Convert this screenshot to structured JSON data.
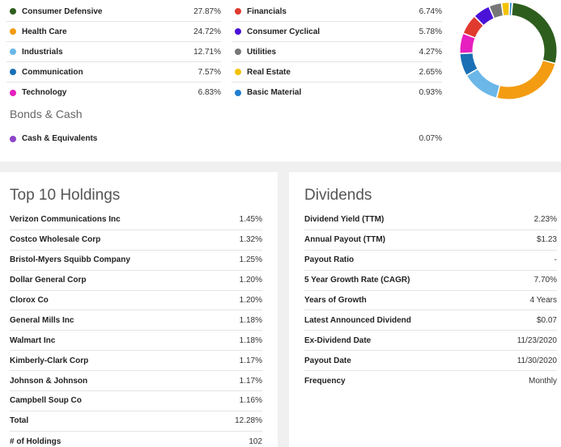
{
  "allocation": {
    "left": [
      {
        "label": "Consumer Defensive",
        "value": "27.87%",
        "color": "#2e5e1e"
      },
      {
        "label": "Health Care",
        "value": "24.72%",
        "color": "#f39c12"
      },
      {
        "label": "Industrials",
        "value": "12.71%",
        "color": "#6ab7e8"
      },
      {
        "label": "Communication",
        "value": "7.57%",
        "color": "#1a6fb5"
      },
      {
        "label": "Technology",
        "value": "6.83%",
        "color": "#e61fbf"
      }
    ],
    "right": [
      {
        "label": "Financials",
        "value": "6.74%",
        "color": "#e03a2e"
      },
      {
        "label": "Consumer Cyclical",
        "value": "5.78%",
        "color": "#4a12d9"
      },
      {
        "label": "Utilities",
        "value": "4.27%",
        "color": "#777777"
      },
      {
        "label": "Real Estate",
        "value": "2.65%",
        "color": "#f5c200"
      },
      {
        "label": "Basic Material",
        "value": "0.93%",
        "color": "#1f7fd1"
      }
    ],
    "bonds_heading": "Bonds & Cash",
    "cash": {
      "label": "Cash & Equivalents",
      "value": "0.07%",
      "color": "#8e44c9"
    }
  },
  "holdings": {
    "title": "Top 10 Holdings",
    "rows": [
      {
        "label": "Verizon Communications Inc",
        "value": "1.45%"
      },
      {
        "label": "Costco Wholesale Corp",
        "value": "1.32%"
      },
      {
        "label": "Bristol-Myers Squibb Company",
        "value": "1.25%"
      },
      {
        "label": "Dollar General Corp",
        "value": "1.20%"
      },
      {
        "label": "Clorox Co",
        "value": "1.20%"
      },
      {
        "label": "General Mills Inc",
        "value": "1.18%"
      },
      {
        "label": "Walmart Inc",
        "value": "1.18%"
      },
      {
        "label": "Kimberly-Clark Corp",
        "value": "1.17%"
      },
      {
        "label": "Johnson & Johnson",
        "value": "1.17%"
      },
      {
        "label": "Campbell Soup Co",
        "value": "1.16%"
      },
      {
        "label": "Total",
        "value": "12.28%"
      },
      {
        "label": "# of Holdings",
        "value": "102"
      }
    ]
  },
  "dividends": {
    "title": "Dividends",
    "rows": [
      {
        "label": "Dividend Yield (TTM)",
        "value": "2.23%"
      },
      {
        "label": "Annual Payout (TTM)",
        "value": "$1.23"
      },
      {
        "label": "Payout Ratio",
        "value": "-"
      },
      {
        "label": "5 Year Growth Rate (CAGR)",
        "value": "7.70%"
      },
      {
        "label": "Years of Growth",
        "value": "4 Years"
      },
      {
        "label": "Latest Announced Dividend",
        "value": "$0.07"
      },
      {
        "label": "Ex-Dividend Date",
        "value": "11/23/2020"
      },
      {
        "label": "Payout Date",
        "value": "11/30/2020"
      },
      {
        "label": "Frequency",
        "value": "Monthly"
      }
    ]
  },
  "chart_data": {
    "type": "pie",
    "title": "",
    "categories": [
      "Consumer Defensive",
      "Health Care",
      "Industrials",
      "Communication",
      "Technology",
      "Financials",
      "Consumer Cyclical",
      "Utilities",
      "Real Estate",
      "Basic Material",
      "Cash & Equivalents"
    ],
    "values": [
      27.87,
      24.72,
      12.71,
      7.57,
      6.83,
      6.74,
      5.78,
      4.27,
      2.65,
      0.93,
      0.07
    ],
    "colors": [
      "#2e5e1e",
      "#f39c12",
      "#6ab7e8",
      "#1a6fb5",
      "#e61fbf",
      "#e03a2e",
      "#4a12d9",
      "#777777",
      "#f5c200",
      "#1f7fd1",
      "#8e44c9"
    ]
  }
}
